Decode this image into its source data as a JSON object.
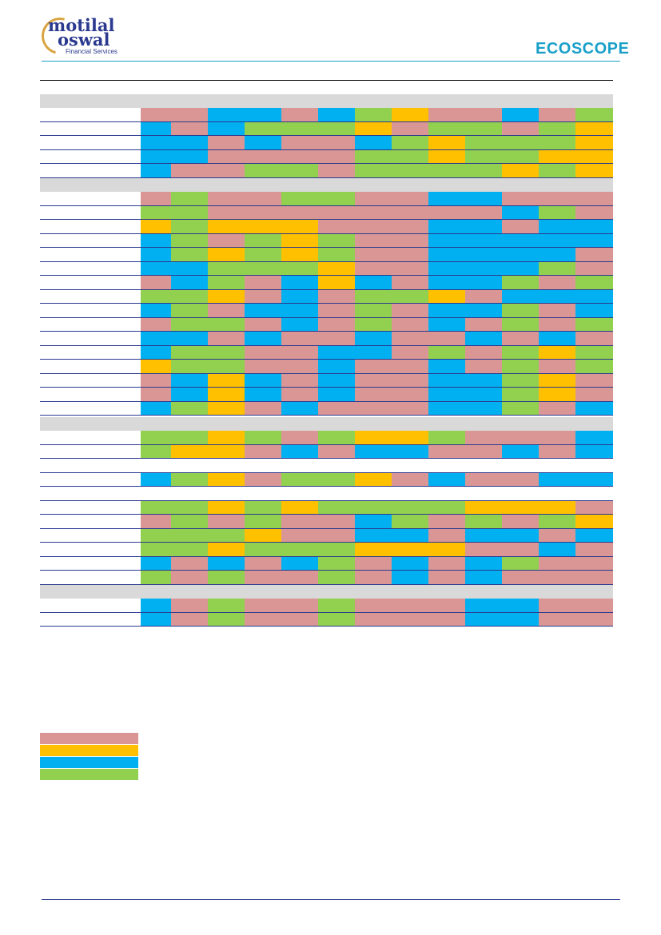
{
  "header": {
    "brand_line1": "motilal",
    "brand_line2": "oswal",
    "brand_sub": "Financial Services",
    "report_logo": "ECOSCOPE"
  },
  "colors": {
    "P": "#d99694",
    "Y": "#ffc000",
    "B": "#00b0f0",
    "G": "#92d050",
    "section": "#d9d9d9",
    "rule": "#2b3a8f",
    "accent": "#1aa0c8"
  },
  "legend": [
    "P",
    "Y",
    "B",
    "G"
  ],
  "sections": [
    {
      "rows": [
        [
          "P",
          "P",
          "B",
          "B",
          "P",
          "B",
          "G",
          "Y",
          "P",
          "P",
          "B",
          "P",
          "G"
        ],
        [
          "B",
          "P",
          "B",
          "G",
          "G",
          "G",
          "Y",
          "P",
          "G",
          "G",
          "P",
          "G",
          "Y"
        ],
        [
          "B",
          "B",
          "P",
          "B",
          "P",
          "P",
          "B",
          "G",
          "Y",
          "G",
          "G",
          "G",
          "Y"
        ],
        [
          "B",
          "B",
          "P",
          "P",
          "P",
          "P",
          "G",
          "G",
          "Y",
          "G",
          "G",
          "Y",
          "Y"
        ],
        [
          "B",
          "P",
          "P",
          "G",
          "G",
          "P",
          "G",
          "G",
          "G",
          "G",
          "Y",
          "G",
          "Y"
        ]
      ]
    },
    {
      "rows": [
        [
          "P",
          "G",
          "P",
          "P",
          "G",
          "G",
          "P",
          "P",
          "B",
          "B",
          "P",
          "P",
          "P"
        ],
        [
          "G",
          "G",
          "P",
          "P",
          "P",
          "P",
          "P",
          "P",
          "P",
          "P",
          "B",
          "G",
          "P"
        ],
        [
          "Y",
          "G",
          "Y",
          "Y",
          "Y",
          "P",
          "P",
          "P",
          "B",
          "B",
          "P",
          "B",
          "B"
        ],
        [
          "B",
          "G",
          "P",
          "G",
          "Y",
          "G",
          "P",
          "P",
          "B",
          "B",
          "B",
          "B",
          "B"
        ],
        [
          "B",
          "G",
          "Y",
          "G",
          "Y",
          "G",
          "P",
          "P",
          "B",
          "B",
          "B",
          "B",
          "P"
        ],
        [
          "B",
          "B",
          "G",
          "G",
          "G",
          "Y",
          "P",
          "P",
          "B",
          "B",
          "B",
          "G",
          "P"
        ],
        [
          "P",
          "B",
          "G",
          "P",
          "B",
          "Y",
          "B",
          "P",
          "B",
          "B",
          "G",
          "P",
          "G"
        ],
        [
          "G",
          "G",
          "Y",
          "P",
          "B",
          "P",
          "G",
          "G",
          "Y",
          "P",
          "B",
          "B",
          "B"
        ],
        [
          "B",
          "G",
          "P",
          "B",
          "B",
          "P",
          "G",
          "P",
          "B",
          "B",
          "G",
          "P",
          "B"
        ],
        [
          "P",
          "G",
          "G",
          "P",
          "B",
          "P",
          "G",
          "P",
          "B",
          "P",
          "G",
          "P",
          "G"
        ],
        [
          "B",
          "B",
          "P",
          "B",
          "P",
          "P",
          "B",
          "P",
          "P",
          "B",
          "P",
          "B",
          "P"
        ],
        [
          "B",
          "G",
          "G",
          "P",
          "P",
          "B",
          "B",
          "P",
          "G",
          "P",
          "G",
          "Y",
          "G"
        ],
        [
          "Y",
          "G",
          "G",
          "P",
          "P",
          "B",
          "P",
          "P",
          "B",
          "P",
          "G",
          "P",
          "G"
        ],
        [
          "P",
          "B",
          "Y",
          "B",
          "P",
          "B",
          "P",
          "P",
          "B",
          "B",
          "G",
          "Y",
          "P"
        ],
        [
          "P",
          "B",
          "Y",
          "B",
          "P",
          "B",
          "P",
          "P",
          "B",
          "B",
          "G",
          "Y",
          "P"
        ],
        [
          "B",
          "G",
          "Y",
          "P",
          "B",
          "P",
          "P",
          "P",
          "B",
          "B",
          "G",
          "P",
          "B"
        ]
      ]
    },
    {
      "rows": [
        [
          "G",
          "G",
          "Y",
          "G",
          "P",
          "G",
          "Y",
          "Y",
          "G",
          "P",
          "P",
          "P",
          "B"
        ],
        [
          "G",
          "Y",
          "Y",
          "P",
          "B",
          "P",
          "B",
          "B",
          "P",
          "P",
          "B",
          "P",
          "B"
        ],
        null,
        [
          "B",
          "G",
          "Y",
          "P",
          "G",
          "G",
          "Y",
          "P",
          "B",
          "P",
          "P",
          "B",
          "B"
        ],
        null,
        [
          "G",
          "G",
          "Y",
          "G",
          "Y",
          "G",
          "G",
          "G",
          "G",
          "Y",
          "Y",
          "Y",
          "P"
        ],
        [
          "P",
          "G",
          "P",
          "G",
          "P",
          "P",
          "B",
          "G",
          "P",
          "G",
          "P",
          "G",
          "Y"
        ],
        [
          "G",
          "G",
          "G",
          "Y",
          "P",
          "P",
          "B",
          "B",
          "P",
          "B",
          "B",
          "P",
          "B"
        ],
        [
          "G",
          "G",
          "Y",
          "G",
          "G",
          "G",
          "Y",
          "Y",
          "Y",
          "P",
          "P",
          "B",
          "P"
        ],
        [
          "B",
          "P",
          "B",
          "P",
          "B",
          "G",
          "P",
          "B",
          "P",
          "B",
          "G",
          "P",
          "P"
        ],
        [
          "G",
          "P",
          "G",
          "P",
          "P",
          "G",
          "P",
          "B",
          "P",
          "B",
          "P",
          "P",
          "P"
        ]
      ]
    },
    {
      "rows": [
        [
          "B",
          "P",
          "G",
          "P",
          "P",
          "G",
          "P",
          "P",
          "P",
          "B",
          "B",
          "P",
          "P"
        ],
        [
          "B",
          "P",
          "G",
          "P",
          "P",
          "G",
          "P",
          "P",
          "P",
          "B",
          "B",
          "P",
          "P"
        ]
      ]
    }
  ]
}
